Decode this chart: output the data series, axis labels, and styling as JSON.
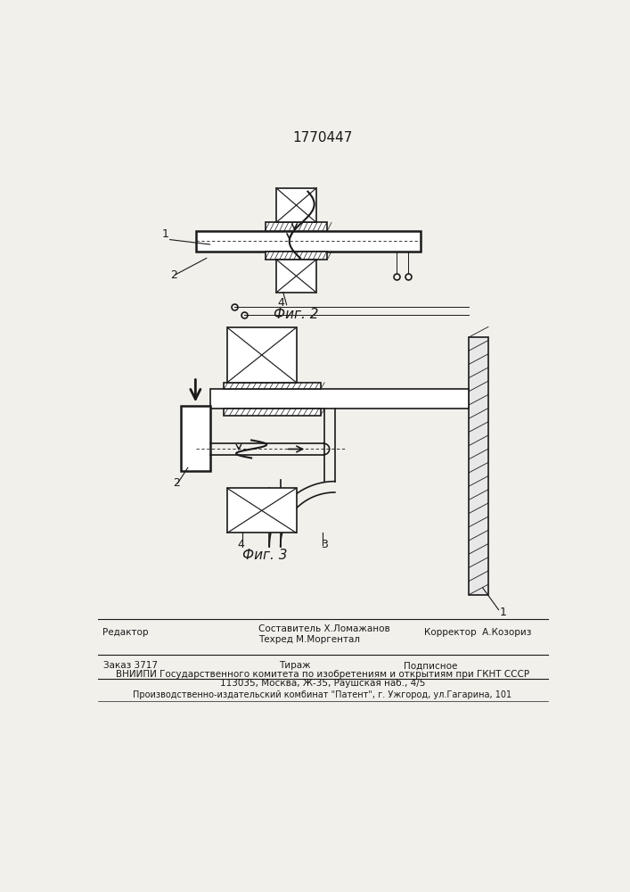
{
  "title_number": "1770447",
  "fig2_label": "Фиг. 2",
  "fig3_label": "Фиг. 3",
  "bg_color": "#f2f0eb",
  "line_color": "#1a1a1a",
  "footer": {
    "line1_left": "Редактор",
    "line1_center_top": "Составитель Х.Ломажанов",
    "line1_center_bot": "Техред М.Моргентал",
    "line1_right": "Корректор  А.Козориз",
    "line2_left": "Заказ 3717",
    "line2_center": "Тираж",
    "line2_right": "Подписное",
    "line3": "ВНИИПИ Государственного комитета по изобретениям и открытиям при ГКНТ СССР",
    "line4": "113035, Москва, Ж-35, Раушская наб., 4/5",
    "line5": "Производственно-издательский комбинат \"Патент\", г. Ужгород, ул.Гагарина, 101"
  }
}
